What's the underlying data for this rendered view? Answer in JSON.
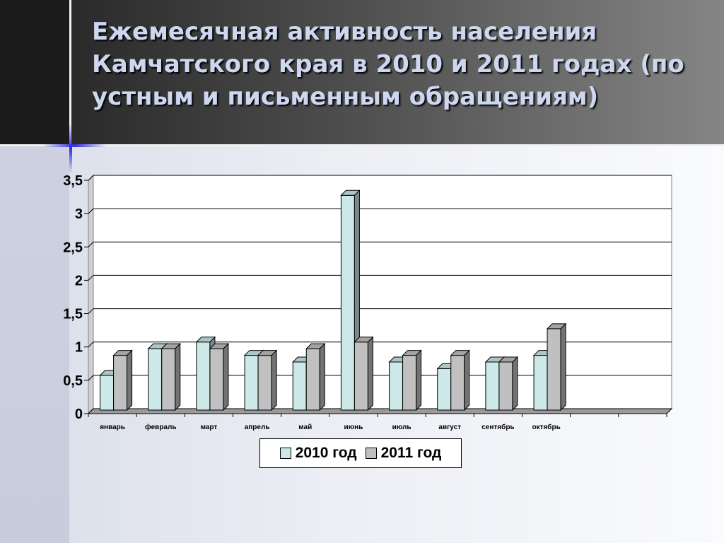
{
  "slide": {
    "title": "Ежемесячная активность населения Камчатского края в 2010 и 2011 годах (по устным и письменным обращениям)"
  },
  "chart_data": {
    "type": "bar",
    "title": "",
    "xlabel": "",
    "ylabel": "",
    "ylim": [
      0,
      3.5
    ],
    "yticks": [
      "0",
      "0,5",
      "1",
      "1,5",
      "2",
      "2,5",
      "3",
      "3,5"
    ],
    "grid": true,
    "legend_position": "bottom",
    "categories": [
      "январь",
      "февраль",
      "март",
      "апрель",
      "май",
      "июнь",
      "июль",
      "август",
      "сентябрь",
      "октябрь",
      "",
      ""
    ],
    "series": [
      {
        "name": "2010 год",
        "color": "#cce8e8",
        "values": [
          0.5,
          0.9,
          1.0,
          0.8,
          0.7,
          3.2,
          0.7,
          0.6,
          0.7,
          0.8,
          null,
          null
        ]
      },
      {
        "name": "2011 год",
        "color": "#c0c0c0",
        "values": [
          0.8,
          0.9,
          0.9,
          0.8,
          0.9,
          1.0,
          0.8,
          0.8,
          0.7,
          1.2,
          null,
          null
        ]
      }
    ]
  }
}
